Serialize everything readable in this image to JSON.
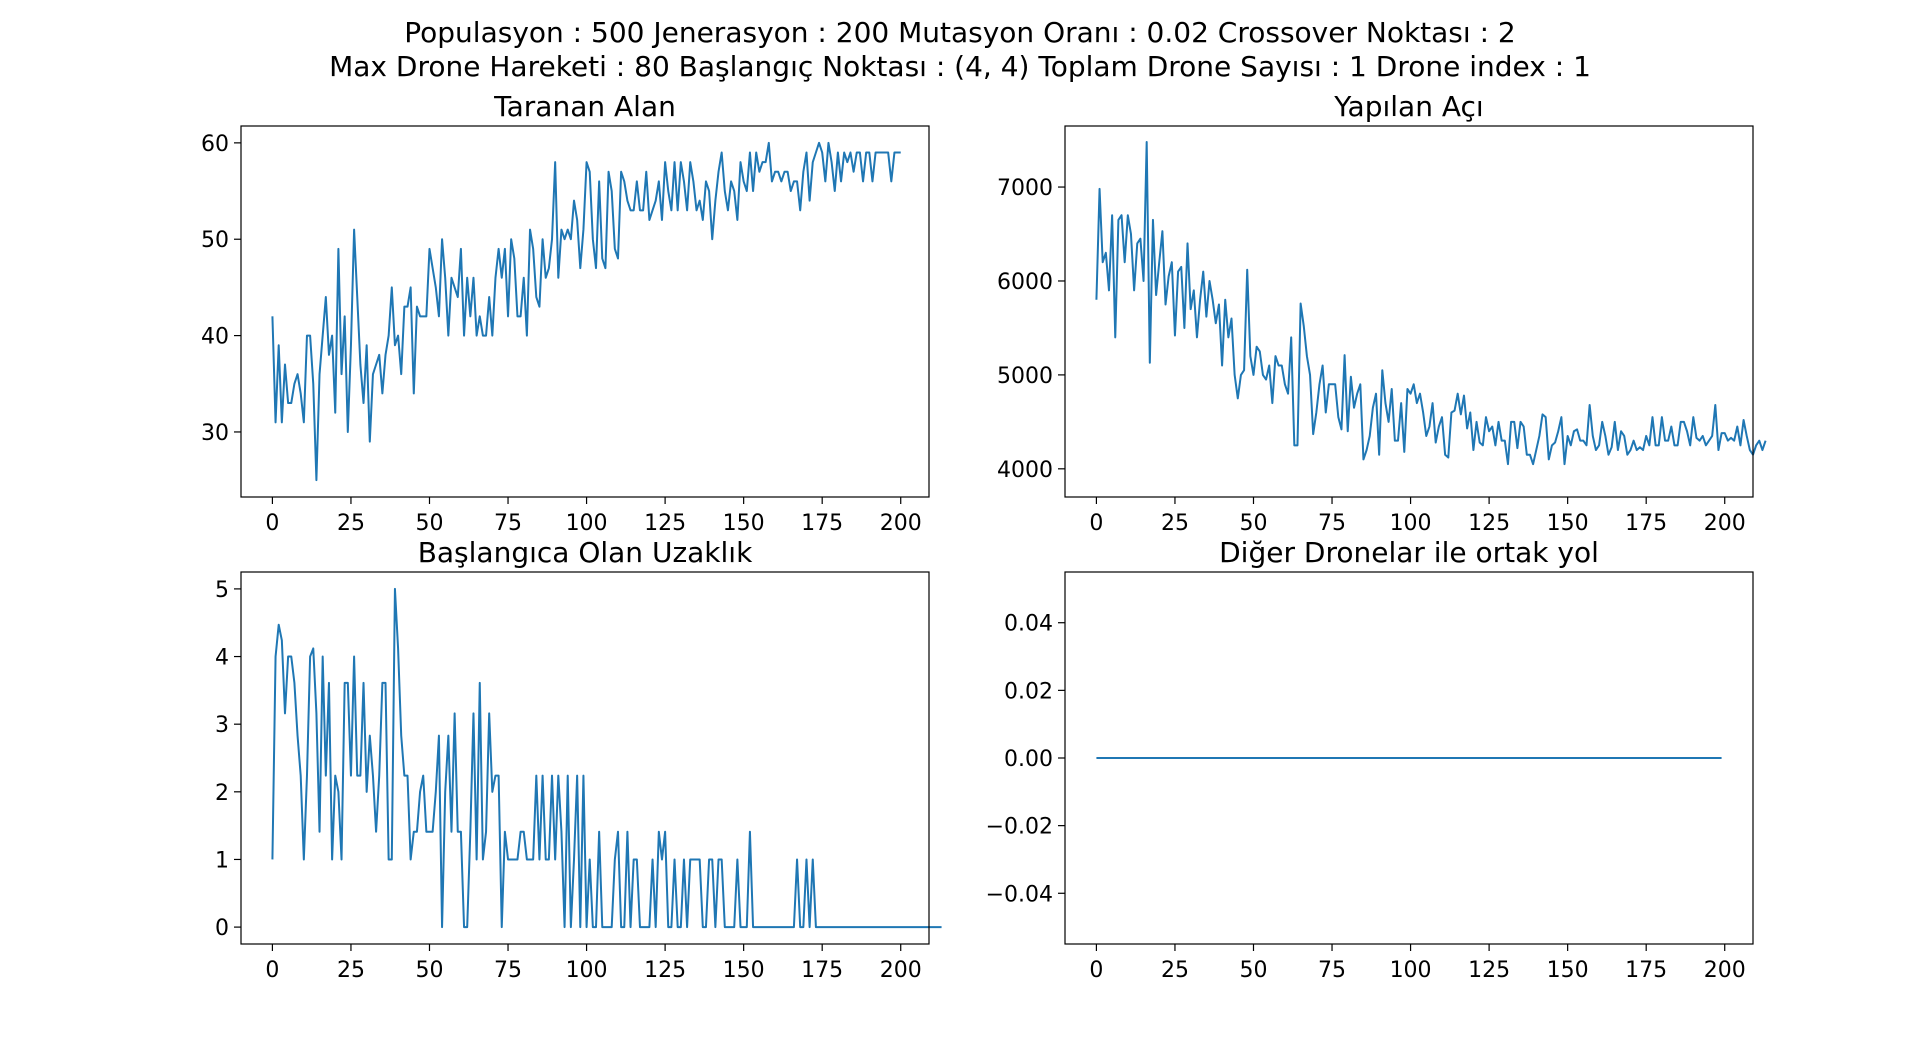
{
  "figure": {
    "suptitle_line1": "Populasyon : 500 Jenerasyon : 200 Mutasyon Oranı : 0.02 Crossover Noktası : 2",
    "suptitle_line2": "Max Drone Hareketi : 80 Başlangıç Noktası : (4, 4) Toplam Drone Sayısı : 1 Drone index : 1"
  },
  "colors": {
    "line": "#1f77b4",
    "axes": "#000000",
    "background": "#ffffff"
  },
  "chart_data": [
    {
      "type": "line",
      "title": "Taranan Alan",
      "xlim": [
        -10,
        209
      ],
      "ylim": [
        23.25,
        61.75
      ],
      "xticks": [
        0,
        25,
        50,
        75,
        100,
        125,
        150,
        175,
        200
      ],
      "yticks": [
        30,
        40,
        50,
        60
      ],
      "grid": false,
      "values": [
        42,
        31,
        39,
        31,
        37,
        33,
        33,
        35,
        36,
        34,
        31,
        40,
        40,
        35,
        25,
        36,
        40,
        44,
        38,
        40,
        32,
        49,
        36,
        42,
        30,
        39,
        51,
        44,
        37,
        33,
        39,
        29,
        36,
        37,
        38,
        34,
        38,
        40,
        45,
        39,
        40,
        36,
        43,
        43,
        45,
        34,
        43,
        42,
        42,
        42,
        49,
        47,
        45,
        42,
        50,
        46,
        40,
        46,
        45,
        44,
        49,
        40,
        46,
        42,
        46,
        40,
        42,
        40,
        40,
        44,
        40,
        46,
        49,
        46,
        49,
        42,
        50,
        48,
        42,
        42,
        46,
        40,
        51,
        49,
        44,
        43,
        50,
        46,
        47,
        50,
        58,
        46,
        51,
        50,
        51,
        50,
        54,
        52,
        47,
        51,
        58,
        57,
        50,
        47,
        56,
        48,
        47,
        57,
        55,
        49,
        48,
        57,
        56,
        54,
        53,
        53,
        56,
        53,
        53,
        57,
        52,
        53,
        54,
        56,
        52,
        58,
        55,
        53,
        58,
        53,
        58,
        56,
        53,
        58,
        56,
        53,
        54,
        52,
        56,
        55,
        50,
        54,
        57,
        59,
        55,
        53,
        56,
        55,
        52,
        58,
        56,
        55,
        59,
        55,
        59,
        57,
        58,
        58,
        60,
        56,
        57,
        57,
        56,
        57,
        57,
        55,
        56,
        56,
        53,
        57,
        59,
        54,
        58,
        59,
        60,
        59,
        56,
        60,
        58,
        55,
        59,
        56,
        59,
        58,
        59,
        57,
        59,
        59,
        56,
        59,
        59,
        56,
        59,
        59,
        59,
        59,
        59,
        56,
        59,
        59,
        59
      ]
    },
    {
      "type": "line",
      "title": "Yapılan Açı",
      "xlim": [
        -10,
        209
      ],
      "ylim": [
        3700,
        7650
      ],
      "xticks": [
        0,
        25,
        50,
        75,
        100,
        125,
        150,
        175,
        200
      ],
      "yticks": [
        4000,
        5000,
        6000,
        7000
      ],
      "grid": false,
      "values": [
        5800,
        6980,
        6200,
        6300,
        5900,
        6700,
        5400,
        6650,
        6700,
        6200,
        6700,
        6500,
        5900,
        6400,
        6450,
        6000,
        7480,
        5130,
        6650,
        5850,
        6200,
        6530,
        5750,
        6050,
        6200,
        5420,
        6100,
        6150,
        5500,
        6400,
        5700,
        5900,
        5400,
        5800,
        6100,
        5620,
        6000,
        5800,
        5550,
        5750,
        5100,
        5800,
        5400,
        5600,
        5000,
        4750,
        5000,
        5050,
        6120,
        5200,
        5000,
        5300,
        5250,
        5000,
        4950,
        5100,
        4700,
        5200,
        5100,
        5100,
        4900,
        4800,
        5400,
        4250,
        4250,
        5760,
        5520,
        5200,
        5000,
        4370,
        4600,
        4900,
        5100,
        4600,
        4900,
        4900,
        4900,
        4550,
        4420,
        5210,
        4400,
        4980,
        4650,
        4800,
        4900,
        4100,
        4200,
        4350,
        4650,
        4800,
        4150,
        5050,
        4700,
        4500,
        4850,
        4300,
        4300,
        4700,
        4180,
        4850,
        4800,
        4900,
        4700,
        4800,
        4600,
        4350,
        4450,
        4700,
        4280,
        4450,
        4550,
        4150,
        4120,
        4600,
        4620,
        4800,
        4580,
        4780,
        4430,
        4600,
        4200,
        4500,
        4280,
        4250,
        4550,
        4400,
        4450,
        4250,
        4500,
        4300,
        4300,
        4050,
        4500,
        4500,
        4220,
        4500,
        4450,
        4150,
        4150,
        4050,
        4200,
        4350,
        4580,
        4550,
        4100,
        4250,
        4280,
        4400,
        4550,
        4050,
        4350,
        4250,
        4400,
        4420,
        4300,
        4300,
        4250,
        4680,
        4350,
        4200,
        4250,
        4500,
        4350,
        4150,
        4230,
        4500,
        4200,
        4400,
        4350,
        4150,
        4200,
        4300,
        4200,
        4230,
        4200,
        4350,
        4250,
        4550,
        4250,
        4250,
        4550,
        4300,
        4300,
        4450,
        4250,
        4250,
        4500,
        4500,
        4400,
        4250,
        4550,
        4330,
        4300,
        4350,
        4250,
        4300,
        4350,
        4680,
        4200,
        4380,
        4380,
        4300,
        4330,
        4300,
        4450,
        4250,
        4520,
        4350,
        4200,
        4150,
        4250,
        4300,
        4200,
        4300
      ]
    },
    {
      "type": "line",
      "title": "Başlangıca Olan Uzaklık",
      "xlim": [
        -10,
        209
      ],
      "ylim": [
        -0.25,
        5.25
      ],
      "xticks": [
        0,
        25,
        50,
        75,
        100,
        125,
        150,
        175,
        200
      ],
      "yticks": [
        0,
        1,
        2,
        3,
        4,
        5
      ],
      "grid": false,
      "values": [
        1,
        4,
        4.47,
        4.24,
        3.16,
        4,
        4,
        3.61,
        2.83,
        2.24,
        1,
        2.24,
        4,
        4.12,
        3.16,
        1.41,
        4,
        2.24,
        3.61,
        1,
        2.24,
        2,
        1,
        3.61,
        3.61,
        2.24,
        4,
        2.24,
        2.24,
        3.61,
        2,
        2.83,
        2.24,
        1.41,
        2.24,
        3.61,
        3.61,
        1,
        1,
        5,
        4.12,
        2.83,
        2.24,
        2.24,
        1,
        1.41,
        1.41,
        2,
        2.24,
        1.41,
        1.41,
        1.41,
        2,
        2.83,
        0,
        2,
        2.83,
        1.41,
        3.16,
        1.41,
        1.41,
        0,
        0,
        1.41,
        3.16,
        1,
        3.61,
        1,
        1.41,
        3.16,
        2,
        2.24,
        2.24,
        0,
        1.41,
        1,
        1,
        1,
        1,
        1.41,
        1.41,
        1,
        1,
        1,
        2.24,
        1,
        2.24,
        1,
        1,
        2.24,
        1,
        2.24,
        1.41,
        0,
        2.24,
        0,
        1,
        2.24,
        0,
        2.24,
        0,
        1,
        0,
        0,
        1.41,
        0,
        0,
        0,
        0,
        1,
        1.41,
        0,
        0,
        1.41,
        0,
        1,
        1,
        0,
        0,
        0,
        0,
        1,
        0,
        1.41,
        1,
        1.41,
        0,
        0,
        1,
        0,
        0,
        1,
        0,
        1,
        1,
        1,
        1,
        0,
        0,
        1,
        1,
        0,
        1,
        1,
        0,
        0,
        0,
        0,
        1,
        0,
        0,
        0,
        1.41,
        0,
        0,
        0,
        0,
        0,
        0,
        0,
        0,
        0,
        0,
        0,
        0,
        0,
        0,
        1,
        0,
        0,
        1,
        0,
        1,
        0,
        0,
        0,
        0,
        0,
        0,
        0,
        0,
        0,
        0,
        0,
        0,
        0,
        0,
        0,
        0,
        0,
        0,
        0,
        0,
        0,
        0,
        0,
        0,
        0,
        0,
        0,
        0,
        0,
        0,
        0,
        0,
        0,
        0,
        0,
        0,
        0,
        0,
        0,
        0,
        0
      ]
    },
    {
      "type": "line",
      "title": "Diğer Dronelar ile ortak yol",
      "xlim": [
        -10,
        209
      ],
      "ylim": [
        -0.055,
        0.055
      ],
      "xticks": [
        0,
        25,
        50,
        75,
        100,
        125,
        150,
        175,
        200
      ],
      "yticks": [
        -0.04,
        -0.02,
        0.0,
        0.02,
        0.04
      ],
      "ytick_labels": [
        "−0.04",
        "−0.02",
        "0.00",
        "0.02",
        "0.04"
      ],
      "grid": false,
      "constant_value": 0,
      "n_points": 200
    }
  ]
}
